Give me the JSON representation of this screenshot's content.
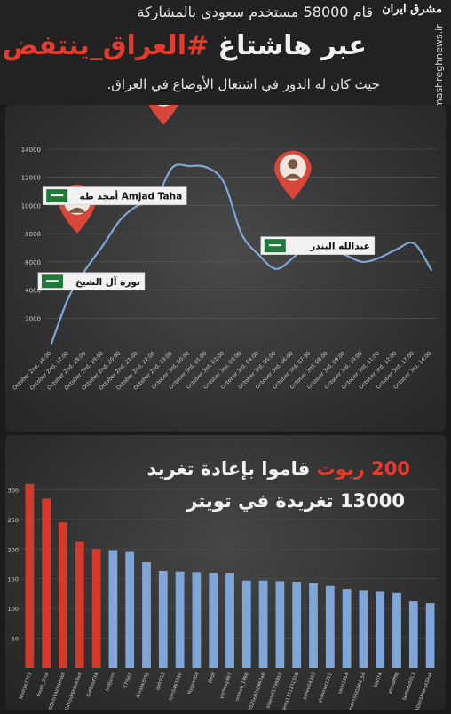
{
  "header": {
    "line1": "قام 58000 مستخدم سعودي بالمشاركة",
    "line2_prefix": "عبر هاشتاغ",
    "line2_hashtag": "#العراق_ينتفض",
    "line3": "حيث كان له الدور في اشتعال الأوضاع في العراق.",
    "vertical_text": "mashreghnews.ir",
    "logo": "مشرق ایران"
  },
  "colors": {
    "accent_red": "#e43b2c",
    "line_blue": "#7ea6d8",
    "bar_red": "#d33a2c",
    "bar_blue": "#7ea6d8"
  },
  "chart_data": [
    {
      "type": "line",
      "ylim": [
        0,
        14000
      ],
      "yticks": [
        "2000",
        "4000",
        "6000",
        "8000",
        "10000",
        "12000",
        "14000"
      ],
      "ytick_values": [
        2000,
        4000,
        6000,
        8000,
        10000,
        12000,
        14000
      ],
      "x": [
        "October 2nd, 16:00",
        "October 2nd, 17:00",
        "October 2nd, 18:00",
        "October 2nd, 19:00",
        "October 2nd, 20:00",
        "October 2nd, 21:00",
        "October 2nd, 22:00",
        "October 2nd, 23:00",
        "October 3rd, 00:00",
        "October 3rd, 01:00",
        "October 3rd, 02:00",
        "October 3rd, 03:00",
        "October 3rd, 04:00",
        "October 3rd, 05:00",
        "October 3rd, 06:00",
        "October 3rd, 07:00",
        "October 3rd, 08:00",
        "October 3rd, 09:00",
        "October 3rd, 10:00",
        "October 3rd, 11:00",
        "October 3rd, 12:00",
        "October 3rd, 13:00",
        "October 3rd, 14:00"
      ],
      "values": [
        200,
        3500,
        5500,
        7200,
        9000,
        10000,
        10400,
        12700,
        12800,
        12700,
        11600,
        8000,
        6500,
        5500,
        6300,
        7400,
        7000,
        6500,
        6000,
        6300,
        6900,
        7300,
        5400
      ],
      "annotations": [
        {
          "label": "نورة آل الشيخ",
          "x_index": 2,
          "flag": "saudi-flag"
        },
        {
          "label": "أمجد طه Amjad Taha",
          "x_index": 7,
          "flag": "saudi-flag"
        },
        {
          "label": "عبدالله البندر",
          "x_index": 15,
          "flag": "saudi-flag"
        }
      ]
    },
    {
      "type": "bar",
      "title_line1_red": "200",
      "title_line1_red2": "ربوت",
      "title_line1_rest": "قاموا بإعادة تغريد",
      "title_line2": "13000 تغريدة في تويتر",
      "ylim": [
        0,
        350
      ],
      "yticks": [
        "50",
        "100",
        "150",
        "200",
        "250",
        "300"
      ],
      "ytick_values": [
        50,
        100,
        150,
        200,
        250,
        300
      ],
      "categories": [
        "Nadiya7773",
        "toosh_3ma",
        "bySQkfsVAkhlbhsbt",
        "Ebhrzsk5bbdk9xd",
        "Gdfbdsf7f4",
        "Ishfjsnm",
        "E7hjd1",
        "Ahrabk5hfg",
        "iptfr033",
        "fsrn5463230",
        "Msgsmfcd",
        "ffffdf",
        "yurfwuy897",
        "nmhek_1998",
        "hS22e67sDMi7a6",
        "alaenaf1736932",
        "sama1151201528",
        "asheu04333",
        "ahdamet1221",
        "sami1254",
        "ahdAhSDG8R4_54",
        "Wan74",
        "ahmdffff6",
        "fadfeds0013",
        "ADsh5M4FsX5Rat"
      ],
      "values": [
        310,
        285,
        245,
        213,
        200,
        198,
        195,
        178,
        163,
        162,
        161,
        160,
        160,
        147,
        147,
        146,
        145,
        143,
        138,
        133,
        131,
        128,
        126,
        112,
        109
      ],
      "highlight_count": 5
    }
  ]
}
